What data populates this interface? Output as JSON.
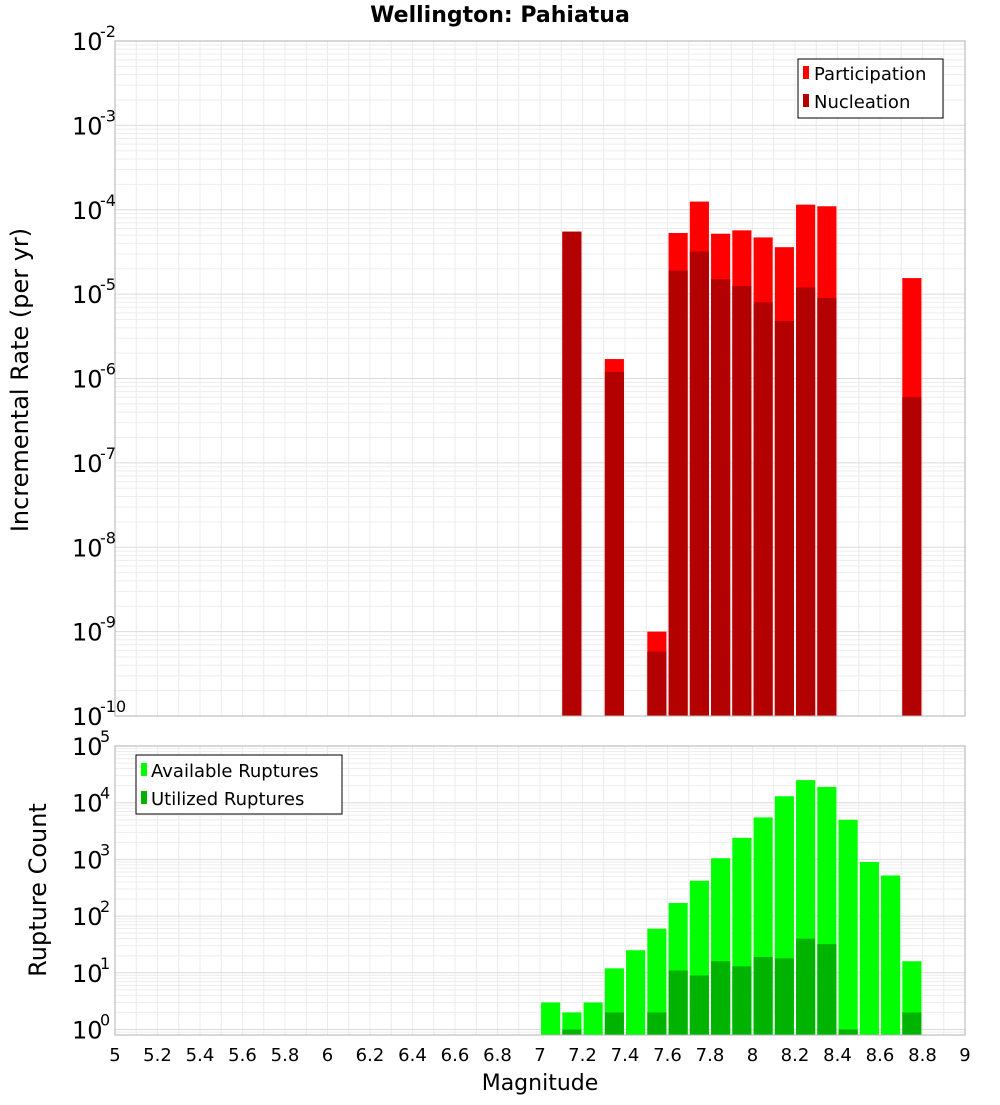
{
  "title": "Wellington: Pahiatua",
  "chart_data": [
    {
      "type": "bar",
      "scale": "log",
      "ylabel": "Incremental Rate (per yr)",
      "ylim": [
        1e-10,
        0.01
      ],
      "xlim": [
        5,
        9
      ],
      "bar_width": 0.09,
      "grid": true,
      "legend_placement": "top-right",
      "yticks": [
        {
          "base": "10",
          "exp": "-10",
          "v": 1e-10
        },
        {
          "base": "10",
          "exp": "-9",
          "v": 1e-09
        },
        {
          "base": "10",
          "exp": "-8",
          "v": 1e-08
        },
        {
          "base": "10",
          "exp": "-7",
          "v": 1e-07
        },
        {
          "base": "10",
          "exp": "-6",
          "v": 1e-06
        },
        {
          "base": "10",
          "exp": "-5",
          "v": 1e-05
        },
        {
          "base": "10",
          "exp": "-4",
          "v": 0.0001
        },
        {
          "base": "10",
          "exp": "-3",
          "v": 0.001
        },
        {
          "base": "10",
          "exp": "-2",
          "v": 0.01
        }
      ],
      "series": [
        {
          "name": "Participation",
          "color": "#ff0000",
          "points": [
            [
              7.15,
              5.5e-05
            ],
            [
              7.35,
              1.7e-06
            ],
            [
              7.55,
              1e-09
            ],
            [
              7.65,
              5.3e-05
            ],
            [
              7.75,
              0.000125
            ],
            [
              7.85,
              5.2e-05
            ],
            [
              7.95,
              5.7e-05
            ],
            [
              8.05,
              4.7e-05
            ],
            [
              8.15,
              3.6e-05
            ],
            [
              8.25,
              0.000115
            ],
            [
              8.35,
              0.00011
            ],
            [
              8.75,
              1.55e-05
            ]
          ]
        },
        {
          "name": "Nucleation",
          "color": "#b30000",
          "points": [
            [
              7.15,
              5.5e-05
            ],
            [
              7.35,
              1.2e-06
            ],
            [
              7.55,
              5.8e-10
            ],
            [
              7.65,
              1.9e-05
            ],
            [
              7.75,
              3.2e-05
            ],
            [
              7.85,
              1.5e-05
            ],
            [
              7.95,
              1.25e-05
            ],
            [
              8.05,
              8e-06
            ],
            [
              8.15,
              4.8e-06
            ],
            [
              8.25,
              1.2e-05
            ],
            [
              8.35,
              9e-06
            ],
            [
              8.75,
              6e-07
            ]
          ]
        }
      ]
    },
    {
      "type": "bar",
      "scale": "log",
      "ylabel": "Rupture Count",
      "xlabel": "Magnitude",
      "ylim": [
        0.8,
        100000.0
      ],
      "xlim": [
        5,
        9
      ],
      "bar_width": 0.09,
      "grid": true,
      "legend_placement": "top-left",
      "yticks": [
        {
          "base": "10",
          "exp": "0",
          "v": 1
        },
        {
          "base": "10",
          "exp": "1",
          "v": 10
        },
        {
          "base": "10",
          "exp": "2",
          "v": 100
        },
        {
          "base": "10",
          "exp": "3",
          "v": 1000
        },
        {
          "base": "10",
          "exp": "4",
          "v": 10000
        },
        {
          "base": "10",
          "exp": "5",
          "v": 100000
        }
      ],
      "xticks": [
        "5",
        "5.2",
        "5.4",
        "5.6",
        "5.8",
        "6",
        "6.2",
        "6.4",
        "6.6",
        "6.8",
        "7",
        "7.2",
        "7.4",
        "7.6",
        "7.8",
        "8",
        "8.2",
        "8.4",
        "8.6",
        "8.8",
        "9"
      ],
      "series": [
        {
          "name": "Available Ruptures",
          "color": "#00ff00",
          "points": [
            [
              7.05,
              3
            ],
            [
              7.15,
              2
            ],
            [
              7.25,
              3
            ],
            [
              7.35,
              12
            ],
            [
              7.45,
              25
            ],
            [
              7.55,
              60
            ],
            [
              7.65,
              170
            ],
            [
              7.75,
              420
            ],
            [
              7.85,
              1050
            ],
            [
              7.95,
              2400
            ],
            [
              8.05,
              5500
            ],
            [
              8.15,
              13000
            ],
            [
              8.25,
              25000
            ],
            [
              8.35,
              19000
            ],
            [
              8.45,
              5000
            ],
            [
              8.55,
              900
            ],
            [
              8.65,
              520
            ],
            [
              8.75,
              16
            ]
          ]
        },
        {
          "name": "Utilized Ruptures",
          "color": "#00b300",
          "points": [
            [
              7.15,
              1
            ],
            [
              7.35,
              2
            ],
            [
              7.55,
              2
            ],
            [
              7.65,
              11
            ],
            [
              7.75,
              9
            ],
            [
              7.85,
              16
            ],
            [
              7.95,
              13
            ],
            [
              8.05,
              19
            ],
            [
              8.15,
              18
            ],
            [
              8.25,
              40
            ],
            [
              8.35,
              32
            ],
            [
              8.45,
              1
            ],
            [
              8.75,
              2
            ]
          ]
        }
      ]
    }
  ]
}
